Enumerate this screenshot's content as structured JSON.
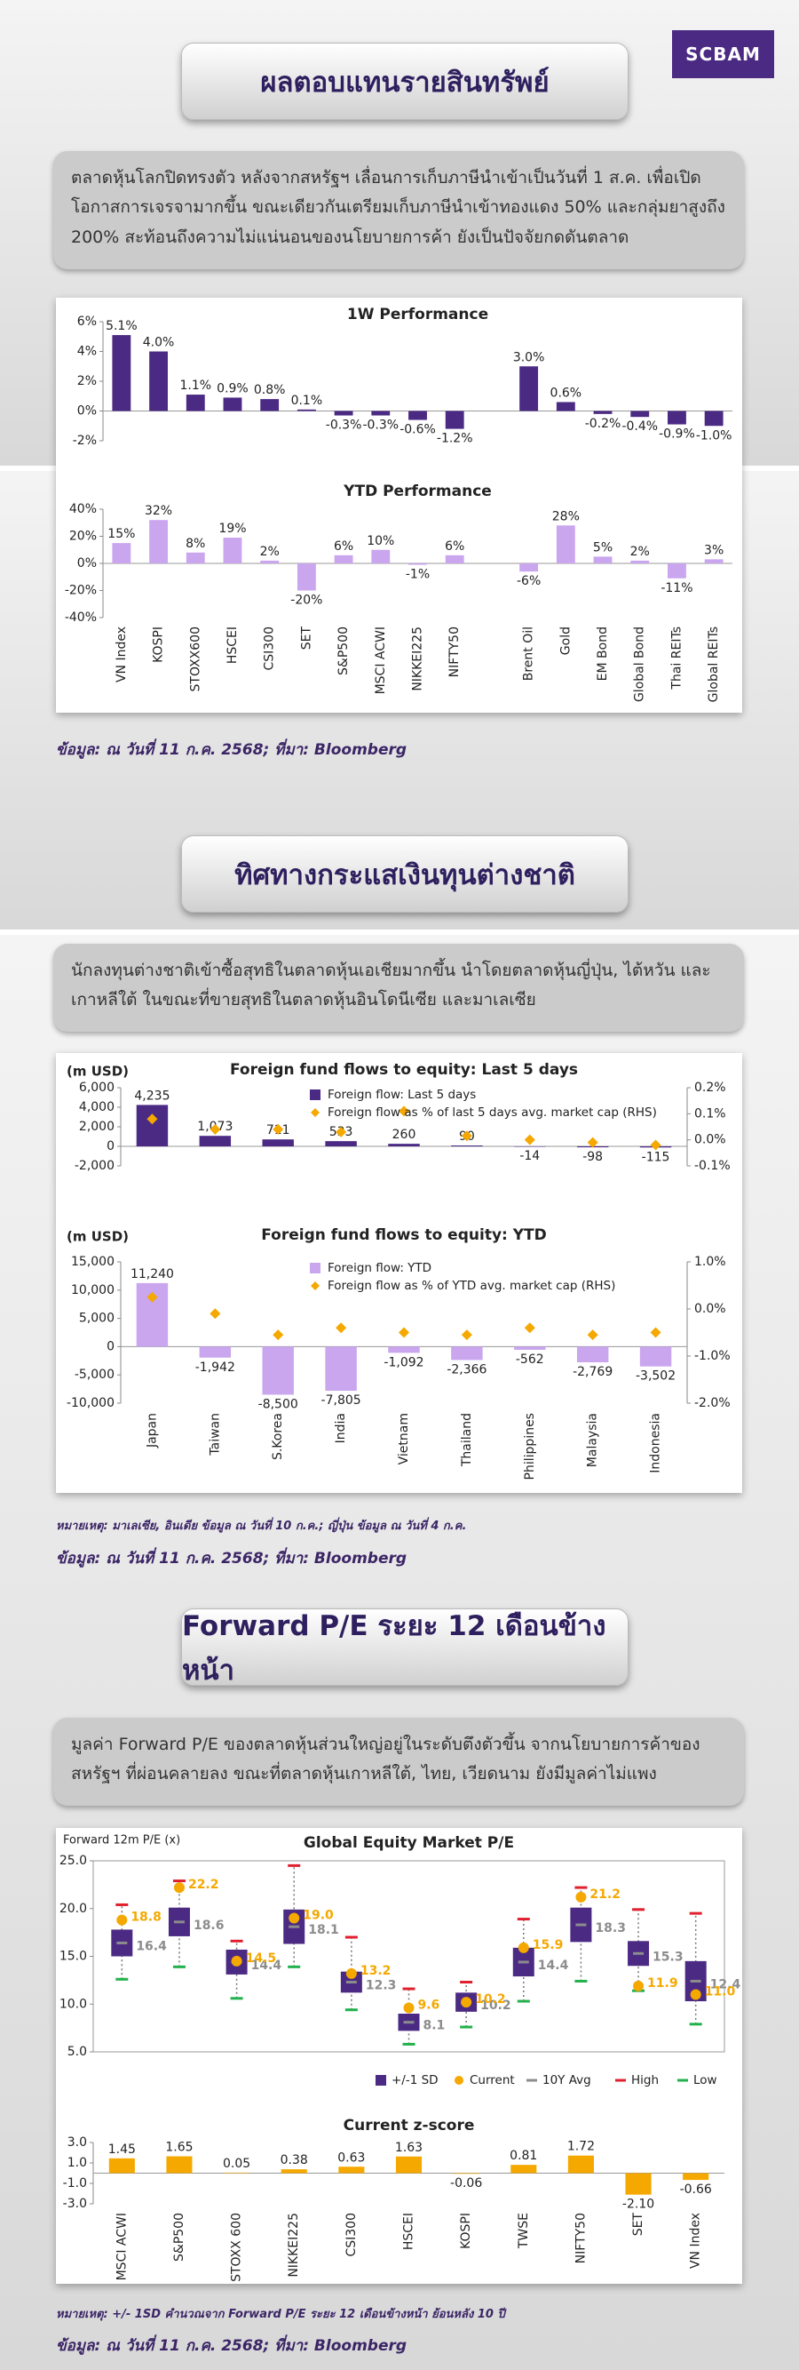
{
  "logo": "SCBAM",
  "section1": {
    "title": "ผลตอบแทนรายสินทรัพย์",
    "text": "ตลาดหุ้นโลกปิดทรงตัว หลังจากสหรัฐฯ เลื่อนการเก็บภาษีนำเข้าเป็นวันที่ 1 ส.ค. เพื่อเปิดโอกาสการเจรจามากขึ้น ขณะเดียวกันเตรียมเก็บภาษีนำเข้าทองแดง 50% และกลุ่มยาสูงถึง 200% สะท้อนถึงความไม่แน่นอนของนโยบายการค้า ยังเป็นปัจจัยกดดันตลาด",
    "source": "ข้อมูล: ณ วันที่ 11 ก.ค. 2568; ที่มา: Bloomberg"
  },
  "section2": {
    "title": "ทิศทางกระแสเงินทุนต่างชาติ",
    "text": "นักลงทุนต่างชาติเข้าซื้อสุทธิในตลาดหุ้นเอเชียมากขึ้น นำโดยตลาดหุ้นญี่ปุ่น, ไต้หวัน และเกาหลีใต้ ในขณะที่ขายสุทธิในตลาดหุ้นอินโดนีเซีย และมาเลเซีย",
    "note": "หมายเหตุ: มาเลเซีย, อินเดีย ข้อมูล ณ วันที่ 10 ก.ค.; ญี่ปุ่น ข้อมูล ณ วันที่ 4 ก.ค.",
    "source": "ข้อมูล: ณ วันที่ 11 ก.ค. 2568; ที่มา: Bloomberg"
  },
  "section3": {
    "title": "Forward P/E ระยะ 12 เดือนข้างหน้า",
    "text": "มูลค่า Forward P/E ของตลาดหุ้นส่วนใหญ่อยู่ในระดับตึงตัวขึ้น จากนโยบายการค้าของสหรัฐฯ ที่ผ่อนคลายลง ขณะที่ตลาดหุ้นเกาหลีใต้, ไทย, เวียดนาม ยังมีมูลค่าไม่แพง",
    "note": "หมายเหตุ: +/- 1SD คำนวณจาก Forward P/E ระยะ 12 เดือนข้างหน้า ย้อนหลัง 10 ปี",
    "source": "ข้อมูล: ณ วันที่ 11 ก.ค. 2568; ที่มา: Bloomberg"
  },
  "chart_data": [
    {
      "type": "bar",
      "title": "1W Performance",
      "values": [
        5.1,
        4.0,
        1.1,
        0.9,
        0.8,
        0.1,
        -0.3,
        -0.3,
        -0.6,
        -1.2,
        null,
        3.0,
        0.6,
        -0.2,
        -0.4,
        -0.9,
        -1.0
      ],
      "value_labels": [
        "5.1%",
        "4.0%",
        "1.1%",
        "0.9%",
        "0.8%",
        "0.1%",
        "-0.3%",
        "-0.3%",
        "-0.6%",
        "-1.2%",
        null,
        "3.0%",
        "0.6%",
        "-0.2%",
        "-0.4%",
        "-0.9%",
        "-1.0%"
      ],
      "color": "#4b2a84",
      "ylim": [
        -2,
        6
      ],
      "yticks": [
        {
          "value": -2,
          "label": "-2%"
        },
        {
          "value": 0,
          "label": "0%"
        },
        {
          "value": 2,
          "label": "2%"
        },
        {
          "value": 4,
          "label": "4%"
        },
        {
          "value": 6,
          "label": "6%"
        }
      ]
    },
    {
      "type": "bar",
      "title": "YTD Performance",
      "categories": [
        "VN Index",
        "KOSPI",
        "STOXX600",
        "HSCEI",
        "CSI300",
        "SET",
        "S&P500",
        "MSCI ACWI",
        "NIKKEI225",
        "NIFTY50",
        null,
        "Brent Oil",
        "Gold",
        "EM Bond",
        "Global Bond",
        "Thai REITs",
        "Global REITs"
      ],
      "values": [
        15,
        32,
        8,
        19,
        2,
        -20,
        6,
        10,
        -1,
        6,
        null,
        -6,
        28,
        5,
        2,
        -11,
        3
      ],
      "value_labels": [
        "15%",
        "32%",
        "8%",
        "19%",
        "2%",
        "-20%",
        "6%",
        "10%",
        "-1%",
        "6%",
        null,
        "-6%",
        "28%",
        "5%",
        "2%",
        "-11%",
        "3%"
      ],
      "color": "#c9a6ee",
      "ylim": [
        -40,
        40
      ],
      "yticks": [
        {
          "value": -40,
          "label": "-40%"
        },
        {
          "value": -20,
          "label": "-20%"
        },
        {
          "value": 0,
          "label": "0%"
        },
        {
          "value": 20,
          "label": "20%"
        },
        {
          "value": 40,
          "label": "40%"
        }
      ]
    },
    {
      "type": "bar",
      "title": "Foreign fund flows to equity: Last 5 days",
      "y_label": "(m USD)",
      "ylim": [
        -2000,
        6000
      ],
      "yticks": [
        {
          "value": -2000,
          "label": "-2,000"
        },
        0,
        {
          "value": 2000,
          "label": "2,000"
        },
        {
          "value": 4000,
          "label": "4,000"
        },
        {
          "value": 6000,
          "label": "6,000"
        }
      ],
      "y2lim": [
        -0.1,
        0.2
      ],
      "y2ticks": [
        {
          "value": -0.1,
          "label": "-0.1%"
        },
        {
          "value": 0,
          "label": "0.0%"
        },
        {
          "value": 0.1,
          "label": "0.1%"
        },
        {
          "value": 0.2,
          "label": "0.2%"
        }
      ],
      "series": [
        {
          "name": "Foreign flow: Last 5 days",
          "color": "#4b2a84",
          "values": [
            4235,
            1073,
            711,
            533,
            260,
            90,
            -14,
            -98,
            -115
          ],
          "value_labels": [
            "4,235",
            "1,073",
            "711",
            "533",
            "260",
            "90",
            "-14",
            "-98",
            "-115"
          ]
        },
        {
          "name": "Foreign flow as % of last 5 days avg. market cap (RHS)",
          "color": "#f5a800",
          "axis": "y2",
          "values": [
            0.08,
            0.04,
            0.04,
            0.03,
            0.11,
            0.015,
            0.0,
            -0.01,
            -0.02
          ]
        }
      ]
    },
    {
      "type": "bar",
      "title": "Foreign fund flows to equity: YTD",
      "y_label": "(m USD)",
      "categories": [
        "Japan",
        "Taiwan",
        "S.Korea",
        "India",
        "Vietnam",
        "Thailand",
        "Philippines",
        "Malaysia",
        "Indonesia"
      ],
      "ylim": [
        -10000,
        15000
      ],
      "yticks": [
        {
          "value": -10000,
          "label": "-10,000"
        },
        {
          "value": -5000,
          "label": "-5,000"
        },
        0,
        {
          "value": 5000,
          "label": "5,000"
        },
        {
          "value": 10000,
          "label": "10,000"
        },
        {
          "value": 15000,
          "label": "15,000"
        }
      ],
      "y2lim": [
        -2.0,
        1.0
      ],
      "y2ticks": [
        {
          "value": -2.0,
          "label": "-2.0%"
        },
        {
          "value": -1.0,
          "label": "-1.0%"
        },
        {
          "value": 0,
          "label": "0.0%"
        },
        {
          "value": 1.0,
          "label": "1.0%"
        }
      ],
      "series": [
        {
          "name": "Foreign flow: YTD",
          "color": "#c9a6ee",
          "values": [
            11240,
            -1942,
            -8500,
            -7805,
            -1092,
            -2366,
            -562,
            -2769,
            -3502
          ],
          "value_labels": [
            "11,240",
            "-1,942",
            "-8,500",
            "-7,805",
            "-1,092",
            "-2,366",
            "-562",
            "-2,769",
            "-3,502"
          ]
        },
        {
          "name": "Foreign flow as % of YTD avg. market cap (RHS)",
          "color": "#f5a800",
          "axis": "y2",
          "values": [
            0.25,
            -0.1,
            -0.55,
            -0.4,
            -0.5,
            -0.55,
            -0.4,
            -0.55,
            -0.5
          ]
        }
      ]
    },
    {
      "type": "box",
      "title": "Global Equity Market P/E",
      "y_label": "Forward 12m P/E (x)",
      "ylim": [
        5,
        25
      ],
      "yticks": [
        {
          "value": 5,
          "label": "5.0"
        },
        {
          "value": 10,
          "label": "10.0"
        },
        {
          "value": 15,
          "label": "15.0"
        },
        {
          "value": 20,
          "label": "20.0"
        },
        {
          "value": 25,
          "label": "25.0"
        }
      ],
      "series": [
        {
          "name": "+/-1 SD",
          "color": "#4b2a84",
          "values": [
            1.4,
            1.5,
            1.3,
            1.8,
            1.1,
            0.9,
            1.0,
            1.5,
            1.8,
            1.3,
            2.1
          ]
        },
        {
          "name": "Current",
          "color": "#f5a800",
          "values": [
            18.8,
            22.2,
            14.5,
            19.0,
            13.2,
            9.6,
            10.2,
            15.9,
            21.2,
            11.9,
            11.0
          ],
          "value_labels": [
            "18.8",
            "22.2",
            "14.5",
            "19.0",
            "13.2",
            "9.6",
            "10.2",
            "15.9",
            "21.2",
            "11.9",
            "11.0"
          ]
        },
        {
          "name": "10Y Avg",
          "color": "#8c8c8c",
          "values": [
            16.4,
            18.6,
            14.4,
            18.1,
            12.3,
            8.1,
            10.2,
            14.4,
            18.3,
            15.3,
            12.4
          ],
          "value_labels": [
            "16.4",
            "18.6",
            "14.4",
            "18.1",
            "12.3",
            "8.1",
            "10.2",
            "14.4",
            "18.3",
            "15.3",
            "12.4"
          ]
        },
        {
          "name": "High",
          "color": "#e0202e",
          "values": [
            20.4,
            22.9,
            16.6,
            24.5,
            17.0,
            11.6,
            12.3,
            18.9,
            22.2,
            19.9,
            19.5
          ]
        },
        {
          "name": "Low",
          "color": "#22b14c",
          "values": [
            12.6,
            13.9,
            10.6,
            13.9,
            9.4,
            5.8,
            7.6,
            10.3,
            12.4,
            11.4,
            7.9
          ]
        }
      ]
    },
    {
      "type": "bar",
      "title": "Current z-score",
      "categories": [
        "MSCI ACWI",
        "S&P500",
        "STOXX 600",
        "NIKKEI225",
        "CSI300",
        "HSCEI",
        "KOSPI",
        "TWSE",
        "NIFTY50",
        "SET",
        "VN Index"
      ],
      "values": [
        1.45,
        1.65,
        0.05,
        0.38,
        0.63,
        1.63,
        -0.06,
        0.81,
        1.72,
        -2.1,
        -0.66
      ],
      "value_labels": [
        "1.45",
        "1.65",
        "0.05",
        "0.38",
        "0.63",
        "1.63",
        "-0.06",
        "0.81",
        "1.72",
        "-2.10",
        "-0.66"
      ],
      "color": "#f5a800",
      "ylim": [
        -3,
        3
      ],
      "yticks": [
        {
          "value": -3,
          "label": "-3.0"
        },
        {
          "value": -1,
          "label": "-1.0"
        },
        {
          "value": 1,
          "label": "1.0"
        },
        {
          "value": 3,
          "label": "3.0"
        }
      ]
    }
  ]
}
